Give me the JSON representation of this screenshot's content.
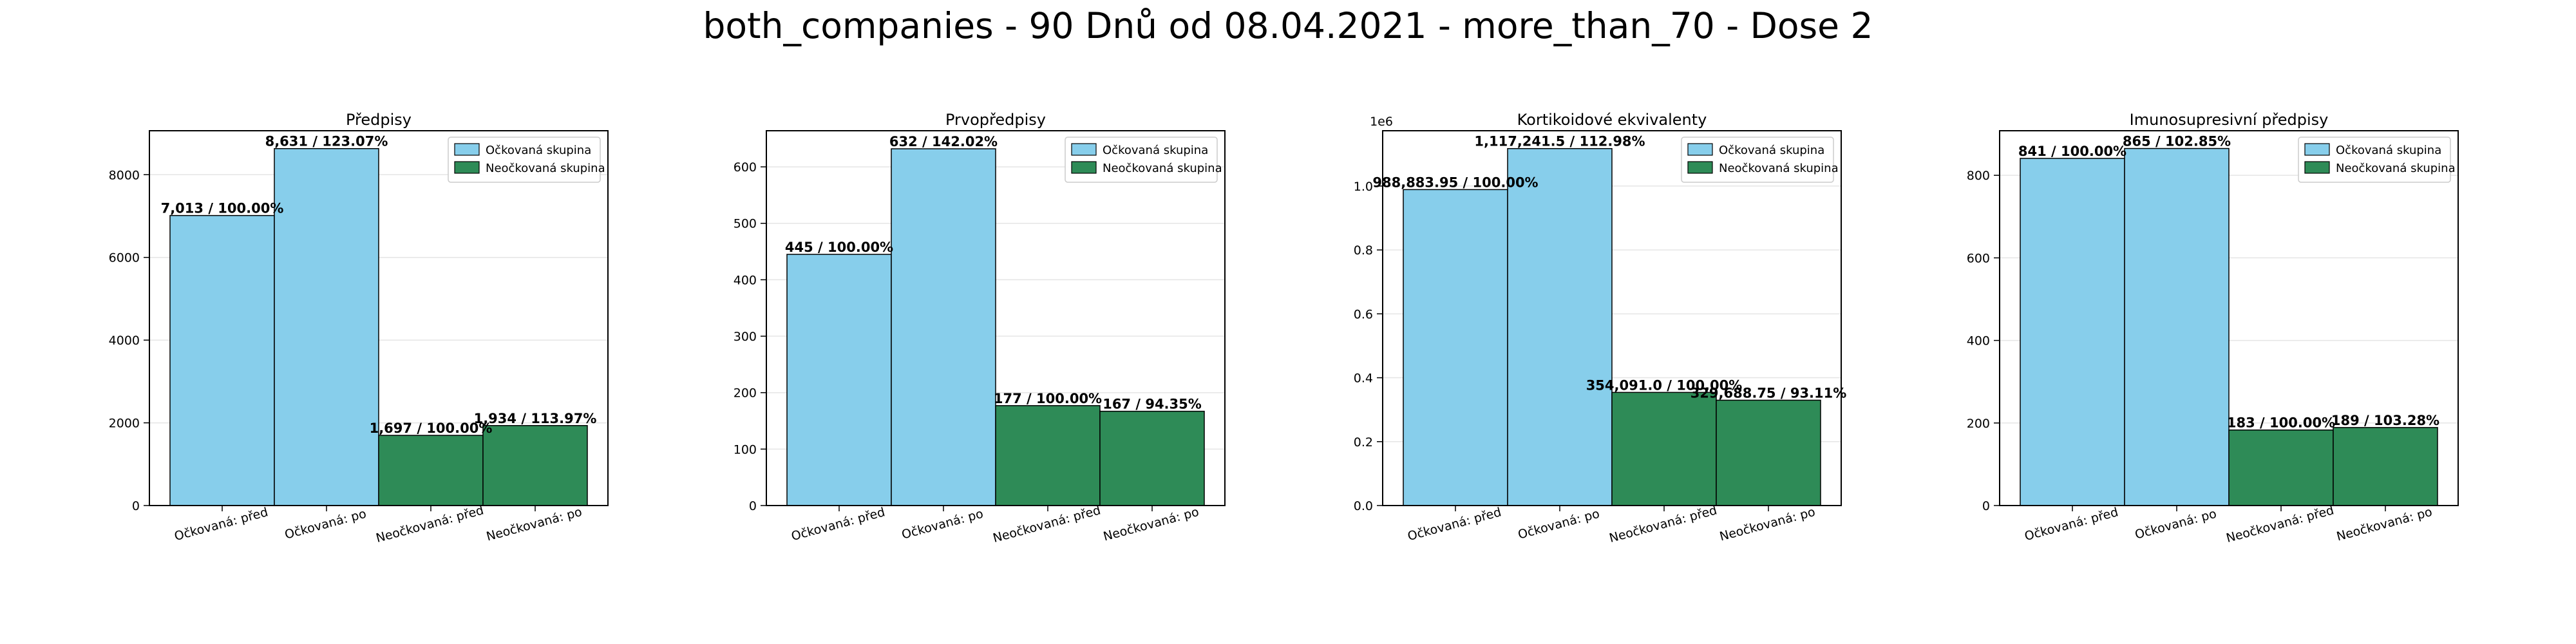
{
  "suptitle": "both_companies - 90 Dnů od 08.04.2021 - more_than_70 - Dose 2",
  "colors": {
    "vaccinated": "#87ceeb",
    "unvaccinated": "#2e8b57",
    "edge": "#000000",
    "grid": "#e5e5e5"
  },
  "chart_data": [
    {
      "type": "bar",
      "title": "Předpisy",
      "categories": [
        "Očkovaná: před",
        "Očkovaná: po",
        "Neočkovaná: před",
        "Neočkovaná: po"
      ],
      "values": [
        7013,
        8631,
        1697,
        1934
      ],
      "data_labels": [
        "7,013 / 100.00%",
        "8,631 / 123.07%",
        "1,697 / 100.00%",
        "1,934 / 113.97%"
      ],
      "groups": [
        "vaccinated",
        "vaccinated",
        "unvaccinated",
        "unvaccinated"
      ],
      "ylim": [
        0,
        9063
      ],
      "yticks": [
        0,
        2000,
        4000,
        6000,
        8000
      ],
      "ytick_labels": [
        "0",
        "2000",
        "4000",
        "6000",
        "8000"
      ],
      "offset_label": "",
      "legend": [
        "Očkovaná skupina",
        "Neočkovaná skupina"
      ],
      "legend_loc": "upper right",
      "grid": "y"
    },
    {
      "type": "bar",
      "title": "Prvopředpisy",
      "categories": [
        "Očkovaná: před",
        "Očkovaná: po",
        "Neočkovaná: před",
        "Neočkovaná: po"
      ],
      "values": [
        445,
        632,
        177,
        167
      ],
      "data_labels": [
        "445 / 100.00%",
        "632 / 142.02%",
        "177 / 100.00%",
        "167 / 94.35%"
      ],
      "groups": [
        "vaccinated",
        "vaccinated",
        "unvaccinated",
        "unvaccinated"
      ],
      "ylim": [
        0,
        664
      ],
      "yticks": [
        0,
        100,
        200,
        300,
        400,
        500,
        600
      ],
      "ytick_labels": [
        "0",
        "100",
        "200",
        "300",
        "400",
        "500",
        "600"
      ],
      "offset_label": "",
      "legend": [
        "Očkovaná skupina",
        "Neočkovaná skupina"
      ],
      "legend_loc": "upper right",
      "grid": "y"
    },
    {
      "type": "bar",
      "title": "Kortikoidové ekvivalenty",
      "categories": [
        "Očkovaná: před",
        "Očkovaná: po",
        "Neočkovaná: před",
        "Neočkovaná: po"
      ],
      "values": [
        988883.95,
        1117241.5,
        354091.0,
        329688.75
      ],
      "data_labels": [
        "988,883.95 / 100.00%",
        "1,117,241.5 / 112.98%",
        "354,091.0 / 100.00%",
        "329,688.75 / 93.11%"
      ],
      "groups": [
        "vaccinated",
        "vaccinated",
        "unvaccinated",
        "unvaccinated"
      ],
      "ylim": [
        0,
        1173104
      ],
      "yticks": [
        0,
        200000,
        400000,
        600000,
        800000,
        1000000
      ],
      "ytick_labels": [
        "0.0",
        "0.2",
        "0.4",
        "0.6",
        "0.8",
        "1.0"
      ],
      "offset_label": "1e6",
      "legend": [
        "Očkovaná skupina",
        "Neočkovaná skupina"
      ],
      "legend_loc": "upper right",
      "grid": "y"
    },
    {
      "type": "bar",
      "title": "Imunosupresivní předpisy",
      "categories": [
        "Očkovaná: před",
        "Očkovaná: po",
        "Neočkovaná: před",
        "Neočkovaná: po"
      ],
      "values": [
        841,
        865,
        183,
        189
      ],
      "data_labels": [
        "841 / 100.00%",
        "865 / 102.85%",
        "183 / 100.00%",
        "189 / 103.28%"
      ],
      "groups": [
        "vaccinated",
        "vaccinated",
        "unvaccinated",
        "unvaccinated"
      ],
      "ylim": [
        0,
        908
      ],
      "yticks": [
        0,
        200,
        400,
        600,
        800
      ],
      "ytick_labels": [
        "0",
        "200",
        "400",
        "600",
        "800"
      ],
      "offset_label": "",
      "legend": [
        "Očkovaná skupina",
        "Neočkovaná skupina"
      ],
      "legend_loc": "upper right",
      "grid": "y"
    }
  ]
}
